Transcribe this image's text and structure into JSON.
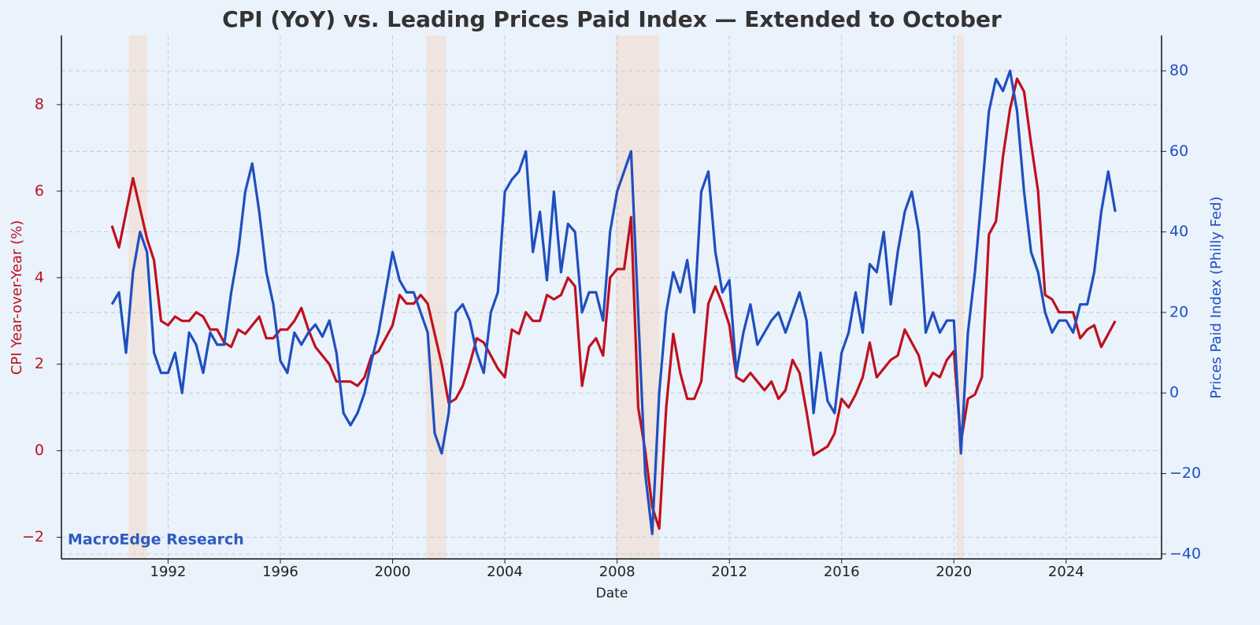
{
  "chart_data": {
    "type": "line",
    "title": "CPI (YoY) vs. Leading Prices Paid Index — Extended to October",
    "xlabel": "Date",
    "ylabel": "CPI Year-over-Year (%)",
    "y2label": "Prices Paid Index (Philly Fed)",
    "watermark": "MacroEdge Research",
    "grid": true,
    "xlim": [
      1988.2,
      2027.4
    ],
    "xticks": [
      1992,
      1996,
      2000,
      2004,
      2008,
      2012,
      2016,
      2020,
      2024
    ],
    "ylim": [
      -2.5,
      9.6
    ],
    "yticks": [
      {
        "value": -2,
        "label": "−2"
      },
      0,
      2,
      4,
      6,
      8
    ],
    "y2lim": [
      -41.2,
      88.8
    ],
    "y2ticks": [
      {
        "value": -40,
        "label": "−40"
      },
      {
        "value": -20,
        "label": "−20"
      },
      0,
      20,
      40,
      60,
      80
    ],
    "recessions": [
      [
        1990.6,
        1991.25
      ],
      [
        2001.2,
        2001.9
      ],
      [
        2007.95,
        2009.5
      ],
      [
        2020.1,
        2020.35
      ]
    ],
    "recession_color": "#efe2dc",
    "x": [
      1990,
      1990.25,
      1990.5,
      1990.75,
      1991,
      1991.25,
      1991.5,
      1991.75,
      1992,
      1992.25,
      1992.5,
      1992.75,
      1993,
      1993.25,
      1993.5,
      1993.75,
      1994,
      1994.25,
      1994.5,
      1994.75,
      1995,
      1995.25,
      1995.5,
      1995.75,
      1996,
      1996.25,
      1996.5,
      1996.75,
      1997,
      1997.25,
      1997.5,
      1997.75,
      1998,
      1998.25,
      1998.5,
      1998.75,
      1999,
      1999.25,
      1999.5,
      1999.75,
      2000,
      2000.25,
      2000.5,
      2000.75,
      2001,
      2001.25,
      2001.5,
      2001.75,
      2002,
      2002.25,
      2002.5,
      2002.75,
      2003,
      2003.25,
      2003.5,
      2003.75,
      2004,
      2004.25,
      2004.5,
      2004.75,
      2005,
      2005.25,
      2005.5,
      2005.75,
      2006,
      2006.25,
      2006.5,
      2006.75,
      2007,
      2007.25,
      2007.5,
      2007.75,
      2008,
      2008.25,
      2008.5,
      2008.75,
      2009,
      2009.25,
      2009.5,
      2009.75,
      2010,
      2010.25,
      2010.5,
      2010.75,
      2011,
      2011.25,
      2011.5,
      2011.75,
      2012,
      2012.25,
      2012.5,
      2012.75,
      2013,
      2013.25,
      2013.5,
      2013.75,
      2014,
      2014.25,
      2014.5,
      2014.75,
      2015,
      2015.25,
      2015.5,
      2015.75,
      2016,
      2016.25,
      2016.5,
      2016.75,
      2017,
      2017.25,
      2017.5,
      2017.75,
      2018,
      2018.25,
      2018.5,
      2018.75,
      2019,
      2019.25,
      2019.5,
      2019.75,
      2020,
      2020.25,
      2020.5,
      2020.75,
      2021,
      2021.25,
      2021.5,
      2021.75,
      2022,
      2022.25,
      2022.5,
      2022.75,
      2023,
      2023.25,
      2023.5,
      2023.75,
      2024,
      2024.25,
      2024.5,
      2024.75,
      2025,
      2025.25,
      2025.5,
      2025.75
    ],
    "series": [
      {
        "name": "CPI YoY",
        "color": "#c0101e",
        "axis": "y",
        "values": [
          5.2,
          4.7,
          5.5,
          6.3,
          5.6,
          4.9,
          4.4,
          3.0,
          2.9,
          3.1,
          3.0,
          3.0,
          3.2,
          3.1,
          2.8,
          2.8,
          2.5,
          2.4,
          2.8,
          2.7,
          2.9,
          3.1,
          2.6,
          2.6,
          2.8,
          2.8,
          3.0,
          3.3,
          2.8,
          2.4,
          2.2,
          2.0,
          1.6,
          1.6,
          1.6,
          1.5,
          1.7,
          2.2,
          2.3,
          2.6,
          2.9,
          3.6,
          3.4,
          3.4,
          3.6,
          3.4,
          2.7,
          2.0,
          1.1,
          1.2,
          1.5,
          2.0,
          2.6,
          2.5,
          2.2,
          1.9,
          1.7,
          2.8,
          2.7,
          3.2,
          3.0,
          3.0,
          3.6,
          3.5,
          3.6,
          4.0,
          3.8,
          1.5,
          2.4,
          2.6,
          2.2,
          4.0,
          4.2,
          4.2,
          5.4,
          1.0,
          0.0,
          -1.3,
          -1.8,
          1.0,
          2.7,
          1.8,
          1.2,
          1.2,
          1.6,
          3.4,
          3.8,
          3.4,
          2.9,
          1.7,
          1.6,
          1.8,
          1.6,
          1.4,
          1.6,
          1.2,
          1.4,
          2.1,
          1.8,
          0.9,
          -0.1,
          0.0,
          0.1,
          0.4,
          1.2,
          1.0,
          1.3,
          1.7,
          2.5,
          1.7,
          1.9,
          2.1,
          2.2,
          2.8,
          2.5,
          2.2,
          1.5,
          1.8,
          1.7,
          2.1,
          2.3,
          0.2,
          1.2,
          1.3,
          1.7,
          5.0,
          5.3,
          6.8,
          7.9,
          8.6,
          8.3,
          7.1,
          6.0,
          3.6,
          3.5,
          3.2,
          3.2,
          3.2,
          2.6,
          2.8,
          2.9,
          2.4,
          2.7,
          3.0
        ]
      },
      {
        "name": "Prices Paid",
        "color": "#1f4fbf",
        "axis": "y2",
        "values": [
          22,
          25,
          10,
          30,
          40,
          35,
          10,
          5,
          5,
          10,
          0,
          15,
          12,
          5,
          15,
          12,
          12,
          25,
          35,
          50,
          57,
          45,
          30,
          22,
          8,
          5,
          15,
          12,
          15,
          17,
          14,
          18,
          10,
          -5,
          -8,
          -5,
          0,
          8,
          15,
          25,
          35,
          28,
          25,
          25,
          20,
          15,
          -10,
          -15,
          -5,
          20,
          22,
          18,
          10,
          5,
          20,
          25,
          50,
          53,
          55,
          60,
          35,
          45,
          28,
          50,
          30,
          42,
          40,
          20,
          25,
          25,
          18,
          40,
          50,
          55,
          60,
          20,
          -20,
          -35,
          0,
          20,
          30,
          25,
          33,
          20,
          50,
          55,
          35,
          25,
          28,
          5,
          15,
          22,
          12,
          15,
          18,
          20,
          15,
          20,
          25,
          18,
          -5,
          10,
          -2,
          -5,
          10,
          15,
          25,
          15,
          32,
          30,
          40,
          22,
          35,
          45,
          50,
          40,
          15,
          20,
          15,
          18,
          18,
          -15,
          15,
          30,
          50,
          70,
          78,
          75,
          80,
          70,
          50,
          35,
          30,
          20,
          15,
          18,
          18,
          15,
          22,
          22,
          30,
          45,
          55,
          45
        ]
      }
    ]
  }
}
